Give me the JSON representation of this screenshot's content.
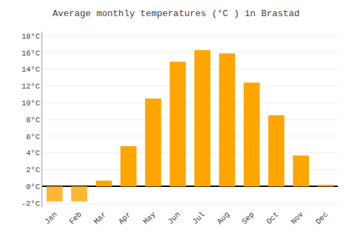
{
  "chart_data": {
    "type": "bar",
    "title": "Average monthly temperatures (°C ) in Brastad",
    "categories": [
      "Jan",
      "Feb",
      "Mar",
      "Apr",
      "May",
      "Jun",
      "Jul",
      "Aug",
      "Sep",
      "Oct",
      "Nov",
      "Dec"
    ],
    "values": [
      -1.8,
      -1.8,
      0.7,
      4.8,
      10.5,
      14.9,
      16.3,
      15.9,
      12.4,
      8.5,
      3.7,
      0.2
    ],
    "colors": [
      "#FFB733",
      "#FFB733",
      "#FFA500",
      "#FFA500",
      "#FFA500",
      "#FFA500",
      "#FFA500",
      "#FFA500",
      "#FFA500",
      "#FFA500",
      "#FFA500",
      "#FFA500"
    ],
    "ylim": [
      -2.5,
      18.5
    ],
    "yticks": [
      {
        "value": -2,
        "label": "-2°C"
      },
      {
        "value": 0,
        "label": "0°C"
      },
      {
        "value": 2,
        "label": "2°C"
      },
      {
        "value": 4,
        "label": "4°C"
      },
      {
        "value": 6,
        "label": "6°C"
      },
      {
        "value": 8,
        "label": "8°C"
      },
      {
        "value": 10,
        "label": "10°C"
      },
      {
        "value": 12,
        "label": "12°C"
      },
      {
        "value": 14,
        "label": "14°C"
      },
      {
        "value": 16,
        "label": "16°C"
      },
      {
        "value": 18,
        "label": "18°C"
      }
    ],
    "grid": true
  }
}
